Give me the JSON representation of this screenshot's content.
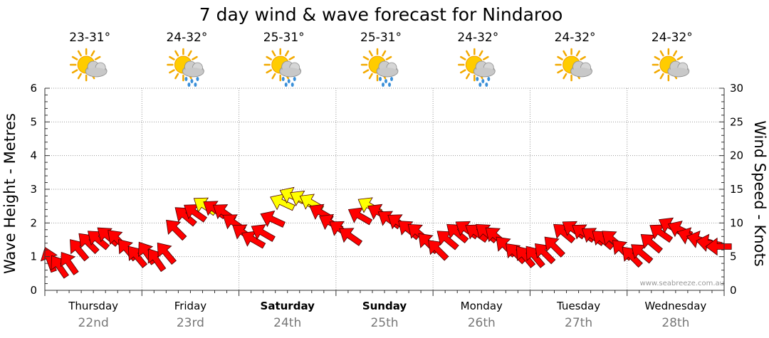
{
  "chart_data": {
    "type": "line",
    "title": "7 day wind & wave forecast for Nindaroo",
    "ylabel_left": "Wave Height - Metres",
    "ylabel_right": "Wind Speed - Knots",
    "ylim_left": [
      0,
      6
    ],
    "ylim_right": [
      0,
      30
    ],
    "yticks_left": [
      "0",
      "1",
      "2",
      "3",
      "4",
      "5",
      "6"
    ],
    "yticks_right": [
      "0",
      "5",
      "10",
      "15",
      "20",
      "25",
      "30"
    ],
    "grid": true,
    "days": [
      {
        "day": "Thursday",
        "date": "22nd",
        "temp": "23-31°",
        "icon": "partly-cloudy-icon",
        "bold": false
      },
      {
        "day": "Friday",
        "date": "23rd",
        "temp": "24-32°",
        "icon": "rain-showers-icon",
        "bold": false
      },
      {
        "day": "Saturday",
        "date": "24th",
        "temp": "25-31°",
        "icon": "rain-showers-icon",
        "bold": true
      },
      {
        "day": "Sunday",
        "date": "25th",
        "temp": "25-31°",
        "icon": "rain-showers-icon",
        "bold": true
      },
      {
        "day": "Monday",
        "date": "26th",
        "temp": "24-32°",
        "icon": "rain-showers-icon",
        "bold": false
      },
      {
        "day": "Tuesday",
        "date": "27th",
        "temp": "24-32°",
        "icon": "partly-cloudy-icon",
        "bold": false
      },
      {
        "day": "Wednesday",
        "date": "28th",
        "temp": "24-32°",
        "icon": "partly-cloudy-icon",
        "bold": false
      }
    ],
    "series": [
      {
        "name": "Wind",
        "units": "knots",
        "color_default": "#ff0000",
        "color_light": "#ffff00",
        "light_threshold_knots": 12.5,
        "x_days": [
          0.0,
          0.1,
          0.2,
          0.3,
          0.4,
          0.5,
          0.6,
          0.7,
          0.8,
          0.9,
          1.0,
          1.1,
          1.2,
          1.3,
          1.4,
          1.5,
          1.6,
          1.7,
          1.8,
          1.9,
          2.0,
          2.1,
          2.2,
          2.3,
          2.4,
          2.5,
          2.6,
          2.7,
          2.8,
          2.9,
          3.0,
          3.1,
          3.2,
          3.3,
          3.4,
          3.5,
          3.6,
          3.7,
          3.8,
          3.9,
          4.0,
          4.1,
          4.2,
          4.3,
          4.4,
          4.5,
          4.6,
          4.7,
          4.8,
          4.9,
          5.0,
          5.1,
          5.2,
          5.3,
          5.4,
          5.5,
          5.6,
          5.7,
          5.8,
          5.9,
          6.0,
          6.1,
          6.2,
          6.3,
          6.4,
          6.5,
          6.6,
          6.7,
          6.8,
          6.9
        ],
        "values": [
          4.5,
          3.5,
          4.0,
          6.0,
          7.0,
          7.5,
          8.0,
          7.5,
          6.0,
          5.0,
          5.5,
          4.5,
          5.5,
          9.0,
          11.0,
          11.5,
          12.5,
          12.0,
          11.5,
          10.0,
          8.5,
          7.5,
          8.5,
          10.5,
          13.0,
          14.0,
          13.5,
          13.0,
          11.5,
          10.0,
          9.0,
          8.0,
          11.0,
          12.5,
          11.5,
          10.5,
          10.0,
          9.0,
          8.5,
          7.0,
          6.0,
          7.5,
          8.5,
          9.0,
          8.5,
          8.5,
          8.0,
          6.5,
          5.5,
          5.0,
          5.0,
          5.5,
          6.5,
          8.5,
          9.0,
          8.5,
          8.0,
          7.5,
          7.5,
          6.0,
          5.0,
          5.5,
          7.0,
          8.5,
          9.5,
          9.0,
          8.0,
          7.5,
          7.0,
          6.5
        ],
        "direction_deg": [
          160,
          145,
          145,
          140,
          135,
          130,
          130,
          135,
          140,
          140,
          145,
          145,
          140,
          135,
          130,
          125,
          125,
          125,
          125,
          125,
          125,
          120,
          120,
          115,
          115,
          115,
          120,
          120,
          120,
          120,
          125,
          125,
          120,
          120,
          120,
          125,
          125,
          130,
          130,
          135,
          135,
          130,
          130,
          125,
          125,
          130,
          130,
          135,
          135,
          140,
          140,
          135,
          135,
          130,
          125,
          125,
          125,
          130,
          130,
          135,
          135,
          130,
          130,
          125,
          120,
          115,
          110,
          105,
          100,
          90
        ]
      },
      {
        "name": "Wave Height",
        "units": "metres",
        "x_days": [],
        "values": []
      }
    ],
    "credit": "www.seabreeze.com.au"
  }
}
